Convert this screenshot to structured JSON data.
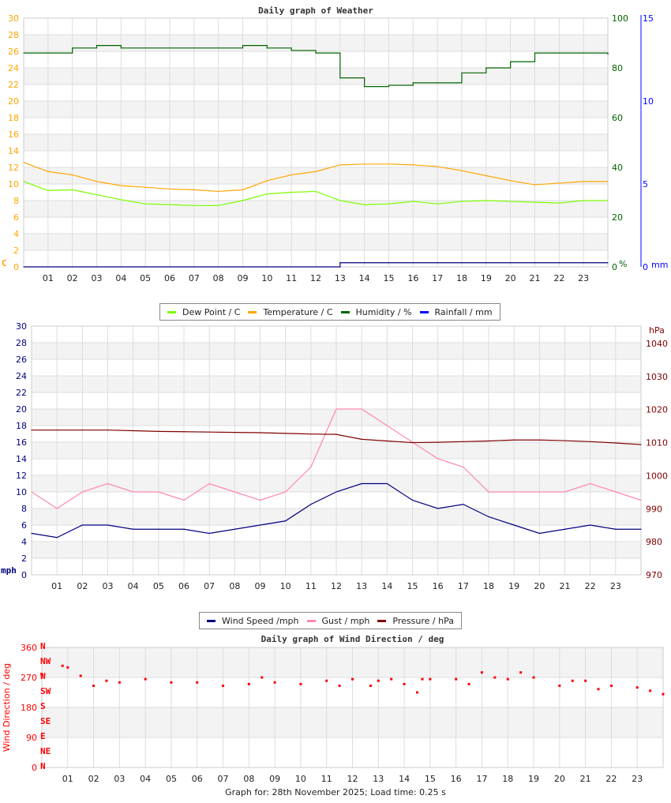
{
  "chart_data": [
    {
      "type": "line",
      "title": "Daily graph of Weather",
      "x_ticks": [
        "01",
        "02",
        "03",
        "04",
        "05",
        "06",
        "07",
        "08",
        "09",
        "10",
        "11",
        "12",
        "13",
        "14",
        "15",
        "16",
        "17",
        "18",
        "19",
        "20",
        "21",
        "22",
        "23"
      ],
      "x": [
        0,
        1,
        2,
        3,
        4,
        5,
        6,
        7,
        8,
        9,
        10,
        11,
        12,
        13,
        14,
        15,
        16,
        17,
        18,
        19,
        20,
        21,
        22,
        23,
        24
      ],
      "y_left": {
        "label": "C",
        "range": [
          0,
          30
        ],
        "ticks": [
          "0",
          "2",
          "4",
          "6",
          "8",
          "10",
          "12",
          "14",
          "16",
          "18",
          "20",
          "22",
          "24",
          "26",
          "28",
          "30"
        ],
        "color": "#ffa500"
      },
      "y_right": {
        "label": "%",
        "range": [
          0,
          100
        ],
        "ticks": [
          "0",
          "20",
          "40",
          "60",
          "80",
          "100"
        ],
        "color": "#006400"
      },
      "y_right2": {
        "label": "mm",
        "range": [
          0,
          15
        ],
        "ticks": [
          "0",
          "5",
          "10",
          "15"
        ],
        "color": "#0000ff"
      },
      "grid": true,
      "legend_position": "bottom",
      "series": [
        {
          "name": "Dew Point / C",
          "axis": "left",
          "color": "#7cfc00",
          "values": [
            10.3,
            9.2,
            9.3,
            8.7,
            8.1,
            7.6,
            7.5,
            7.4,
            7.4,
            8.0,
            8.8,
            9.0,
            9.1,
            8.0,
            7.5,
            7.6,
            7.9,
            7.6,
            7.9,
            8.0,
            7.9,
            7.8,
            7.7,
            8.0,
            8.0
          ]
        },
        {
          "name": "Temperature / C",
          "axis": "left",
          "color": "#ffa500",
          "values": [
            12.6,
            11.5,
            11.1,
            10.3,
            9.8,
            9.6,
            9.4,
            9.3,
            9.1,
            9.3,
            10.4,
            11.1,
            11.5,
            12.3,
            12.4,
            12.4,
            12.3,
            12.1,
            11.6,
            11.0,
            10.4,
            9.9,
            10.1,
            10.3,
            10.3
          ]
        },
        {
          "name": "Humidity / %",
          "axis": "right",
          "color": "#006400",
          "values": [
            86,
            86,
            88,
            89,
            88,
            88,
            88,
            88,
            88,
            89,
            88,
            87,
            86,
            76,
            72.5,
            73,
            74,
            74,
            78,
            80,
            82.5,
            86,
            86,
            86,
            85.5
          ]
        },
        {
          "name": "Rainfall / mm",
          "axis": "right2",
          "color": "#000080",
          "values": [
            0,
            0,
            0,
            0,
            0,
            0,
            0,
            0,
            0,
            0,
            0,
            0,
            0,
            0.25,
            0.25,
            0.25,
            0.25,
            0.25,
            0.25,
            0.25,
            0.25,
            0.25,
            0.25,
            0.25,
            0.25
          ]
        }
      ]
    },
    {
      "type": "line",
      "title": "",
      "x_ticks": [
        "01",
        "02",
        "03",
        "04",
        "05",
        "06",
        "07",
        "08",
        "09",
        "10",
        "11",
        "12",
        "13",
        "14",
        "15",
        "16",
        "17",
        "18",
        "19",
        "20",
        "21",
        "22",
        "23"
      ],
      "x": [
        0,
        1,
        2,
        3,
        4,
        5,
        6,
        7,
        8,
        9,
        10,
        11,
        12,
        13,
        14,
        15,
        16,
        17,
        18,
        19,
        20,
        21,
        22,
        23,
        24
      ],
      "y_left": {
        "label": "mph",
        "range": [
          0,
          30
        ],
        "ticks": [
          "0",
          "2",
          "4",
          "6",
          "8",
          "10",
          "12",
          "14",
          "16",
          "18",
          "20",
          "22",
          "24",
          "26",
          "28",
          "30"
        ],
        "color": "#000080"
      },
      "y_right": {
        "label": "hPa",
        "range": [
          970,
          1040
        ],
        "ticks": [
          "970",
          "980",
          "990",
          "1000",
          "1010",
          "1020",
          "1030",
          "1040"
        ],
        "color": "#800000"
      },
      "grid": true,
      "legend_position": "bottom",
      "series": [
        {
          "name": "Wind Speed /mph",
          "axis": "left",
          "color": "#000080",
          "values": [
            5,
            4.5,
            6,
            6,
            5.5,
            5.5,
            5.5,
            5,
            5.5,
            6,
            6.5,
            8.5,
            10,
            11,
            11,
            9,
            8,
            8.5,
            7,
            6,
            5,
            5.5,
            6,
            5.5,
            5.5
          ]
        },
        {
          "name": "Gust / mph",
          "axis": "left",
          "color": "#ff88aa",
          "values": [
            10,
            8,
            10,
            11,
            10,
            10,
            9,
            11,
            10,
            9,
            10,
            13,
            20,
            20,
            18,
            16,
            14,
            13,
            10,
            10,
            10,
            10,
            11,
            10,
            9
          ]
        },
        {
          "name": "Pressure / hPa",
          "axis": "right",
          "color": "#800000",
          "values": [
            1013.8,
            1013.8,
            1013.8,
            1013.8,
            1013.6,
            1013.4,
            1013.3,
            1013.2,
            1013.1,
            1013,
            1012.8,
            1012.6,
            1012.5,
            1011,
            1010.5,
            1010,
            1010.1,
            1010.3,
            1010.5,
            1010.8,
            1010.8,
            1010.6,
            1010.3,
            1009.9,
            1009.4
          ]
        }
      ]
    },
    {
      "type": "scatter",
      "title": "Daily graph of Wind Direction / deg",
      "x_ticks": [
        "01",
        "02",
        "03",
        "04",
        "05",
        "06",
        "07",
        "08",
        "09",
        "10",
        "11",
        "12",
        "13",
        "14",
        "15",
        "16",
        "17",
        "18",
        "19",
        "20",
        "21",
        "22",
        "23"
      ],
      "y_left": {
        "label": "Wind Direction / deg",
        "range": [
          0,
          360
        ],
        "ticks": [
          "0",
          "90",
          "180",
          "270",
          "360"
        ],
        "color": "#ff0000"
      },
      "compass": [
        "N",
        "NE",
        "E",
        "SE",
        "S",
        "SW",
        "W",
        "NW",
        "N"
      ],
      "grid": true,
      "series": [
        {
          "name": "Wind Direction / deg",
          "color": "#ff0000",
          "x": [
            0,
            0.8,
            1,
            1.5,
            2,
            2.5,
            3,
            4,
            5,
            6,
            7,
            8,
            8.5,
            9,
            10,
            11,
            11.5,
            12,
            12.7,
            13,
            13.5,
            14,
            14.5,
            14.7,
            15,
            16,
            16.5,
            17,
            17.5,
            18,
            18.5,
            19,
            20,
            20.5,
            21,
            21.5,
            22,
            23,
            23.5,
            24
          ],
          "values": [
            280,
            305,
            300,
            275,
            245,
            260,
            255,
            265,
            255,
            255,
            245,
            250,
            270,
            255,
            250,
            260,
            245,
            265,
            245,
            260,
            265,
            250,
            225,
            265,
            265,
            265,
            250,
            285,
            270,
            265,
            285,
            270,
            245,
            260,
            260,
            235,
            245,
            240,
            230,
            220
          ]
        }
      ]
    }
  ],
  "footer": "Graph for: 28th November 2025; Load time: 0.25 s"
}
